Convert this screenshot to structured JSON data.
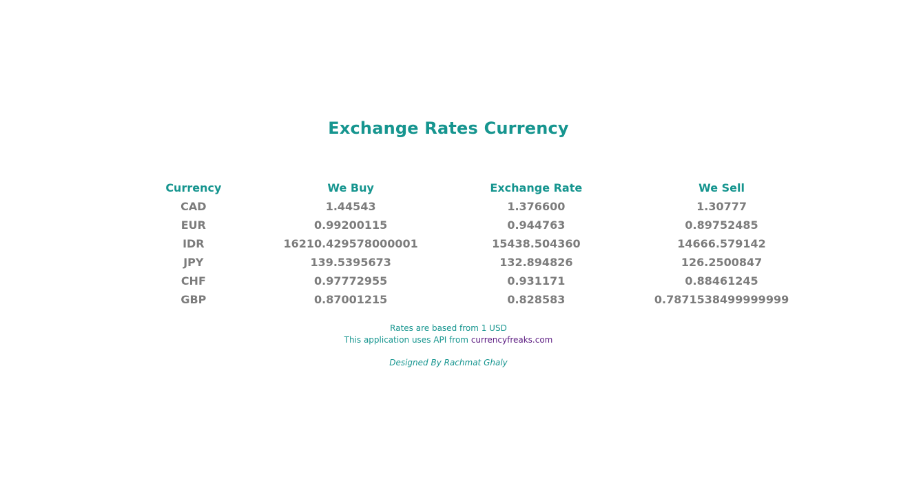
{
  "title": "Exchange Rates Currency",
  "table": {
    "headers": {
      "currency": "Currency",
      "we_buy": "We Buy",
      "exchange_rate": "Exchange Rate",
      "we_sell": "We Sell"
    },
    "rows": [
      {
        "currency": "CAD",
        "we_buy": "1.44543",
        "exchange_rate": "1.376600",
        "we_sell": "1.30777"
      },
      {
        "currency": "EUR",
        "we_buy": "0.99200115",
        "exchange_rate": "0.944763",
        "we_sell": "0.89752485"
      },
      {
        "currency": "IDR",
        "we_buy": "16210.429578000001",
        "exchange_rate": "15438.504360",
        "we_sell": "14666.579142"
      },
      {
        "currency": "JPY",
        "we_buy": "139.5395673",
        "exchange_rate": "132.894826",
        "we_sell": "126.2500847"
      },
      {
        "currency": "CHF",
        "we_buy": "0.97772955",
        "exchange_rate": "0.931171",
        "we_sell": "0.88461245"
      },
      {
        "currency": "GBP",
        "we_buy": "0.87001215",
        "exchange_rate": "0.828583",
        "we_sell": "0.7871538499999999"
      }
    ]
  },
  "footer": {
    "rates_note": "Rates are based from 1 USD",
    "api_prefix": "This application uses API from",
    "api_link": "currencyfreaks.com",
    "designer": "Designed By Rachmat Ghaly"
  },
  "colors": {
    "accent": "#16958f",
    "value_text": "#7c7c7c",
    "link": "#5a1a80",
    "background": "#ffffff"
  }
}
